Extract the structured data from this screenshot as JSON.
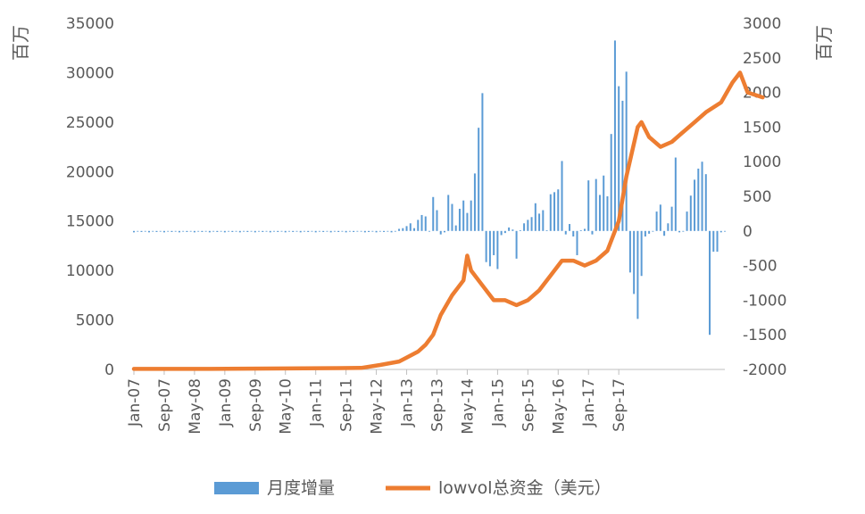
{
  "chart_data": {
    "type": "bar+line",
    "left_axis": {
      "unit_label": "百万",
      "ylim": [
        0,
        35000
      ],
      "ticks": [
        "0",
        "5000",
        "10000",
        "15000",
        "20000",
        "25000",
        "30000",
        "35000"
      ]
    },
    "right_axis": {
      "unit_label": "百万",
      "ylim": [
        -2000,
        3000
      ],
      "ticks": [
        "-2000",
        "-1500",
        "-1000",
        "-500",
        "0",
        "500",
        "1000",
        "1500",
        "2000",
        "2500",
        "3000"
      ]
    },
    "x_tick_labels": [
      "Jan-07",
      "Sep-07",
      "May-08",
      "Jan-09",
      "Sep-09",
      "May-10",
      "Jan-11",
      "Sep-11",
      "May-12",
      "Jan-13",
      "Sep-13",
      "May-14",
      "Jan-15",
      "Sep-15",
      "May-16",
      "Jan-17",
      "Sep-17"
    ],
    "start_month": "Jan-07",
    "legend": [
      {
        "name": "月度增量",
        "color": "#5b9bd5",
        "kind": "bar"
      },
      {
        "name": "lowvol总资金（美元）",
        "color": "#ed7d31",
        "kind": "line"
      }
    ],
    "series": [
      {
        "name": "月度增量",
        "axis": "right",
        "type": "bar",
        "color": "#5b9bd5",
        "values": [
          -20,
          -10,
          -15,
          -5,
          -20,
          -10,
          -15,
          -5,
          -20,
          -10,
          -15,
          -5,
          -20,
          -10,
          -15,
          -5,
          -20,
          -10,
          -15,
          -5,
          -20,
          -10,
          -15,
          -5,
          -20,
          -10,
          -15,
          -5,
          -20,
          -10,
          -15,
          -5,
          -20,
          -10,
          -15,
          -5,
          -20,
          -10,
          -15,
          -5,
          -20,
          -10,
          -15,
          -5,
          -20,
          -10,
          -15,
          -5,
          -20,
          -10,
          -15,
          -5,
          -20,
          -10,
          -15,
          -5,
          -20,
          -10,
          -15,
          -5,
          -10,
          -20,
          -15,
          -5,
          -20,
          -10,
          -15,
          -5,
          -20,
          -10,
          30,
          40,
          70,
          110,
          40,
          160,
          230,
          210,
          -10,
          490,
          300,
          -50,
          -20,
          520,
          390,
          80,
          320,
          440,
          260,
          440,
          830,
          1490,
          1990,
          -450,
          -510,
          -350,
          -550,
          -60,
          -30,
          50,
          20,
          -400,
          10,
          110,
          160,
          200,
          400,
          250,
          300,
          10,
          530,
          560,
          600,
          1010,
          -50,
          100,
          -80,
          -350,
          10,
          30,
          730,
          -50,
          750,
          520,
          800,
          500,
          1400,
          2750,
          2090,
          1880,
          2300,
          -600,
          -910,
          -1270,
          -650,
          -80,
          -40,
          0,
          280,
          380,
          -70,
          110,
          350,
          1060,
          -20,
          -10,
          280,
          510,
          740,
          900,
          1000,
          820,
          -1500,
          -300,
          -300,
          -20,
          -10
        ]
      },
      {
        "name": "lowvol总资金（美元）",
        "axis": "left",
        "type": "line",
        "color": "#ed7d31",
        "points": [
          [
            0,
            50
          ],
          [
            20,
            50
          ],
          [
            40,
            100
          ],
          [
            60,
            150
          ],
          [
            65,
            450
          ],
          [
            70,
            800
          ],
          [
            72,
            1200
          ],
          [
            75,
            1800
          ],
          [
            77,
            2500
          ],
          [
            79,
            3500
          ],
          [
            81,
            5500
          ],
          [
            84,
            7500
          ],
          [
            87,
            9000
          ],
          [
            88,
            11500
          ],
          [
            89,
            10000
          ],
          [
            92,
            8500
          ],
          [
            95,
            7000
          ],
          [
            98,
            7000
          ],
          [
            101,
            6500
          ],
          [
            104,
            7000
          ],
          [
            107,
            8000
          ],
          [
            110,
            9500
          ],
          [
            113,
            11000
          ],
          [
            116,
            11000
          ],
          [
            119,
            10500
          ],
          [
            122,
            11000
          ],
          [
            125,
            12000
          ],
          [
            128,
            15000
          ],
          [
            130,
            19500
          ],
          [
            133,
            24500
          ],
          [
            134,
            25000
          ],
          [
            136,
            23500
          ],
          [
            139,
            22500
          ],
          [
            142,
            23000
          ],
          [
            145,
            24000
          ],
          [
            148,
            25000
          ],
          [
            151,
            26000
          ],
          [
            155,
            27000
          ],
          [
            158,
            29000
          ],
          [
            160,
            30000
          ],
          [
            162,
            28000
          ],
          [
            166,
            27500
          ]
        ]
      }
    ]
  }
}
